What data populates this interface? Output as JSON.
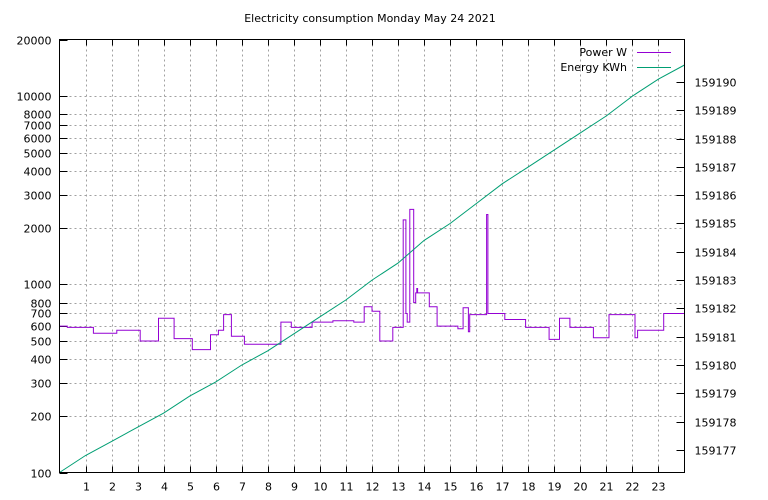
{
  "chart_data": {
    "type": "line",
    "title": "Electricity consumption Monday May 24 2021",
    "xlabel": "",
    "ylabel": "",
    "xlim": [
      0,
      24
    ],
    "x_ticks": [
      1,
      2,
      3,
      4,
      5,
      6,
      7,
      8,
      9,
      10,
      11,
      12,
      13,
      14,
      15,
      16,
      17,
      18,
      19,
      20,
      21,
      22,
      23
    ],
    "ylim_left": [
      100,
      20000
    ],
    "y_scale_left": "log",
    "y_ticks_left": [
      100,
      200,
      300,
      400,
      500,
      600,
      700,
      800,
      1000,
      2000,
      3000,
      4000,
      5000,
      6000,
      7000,
      8000,
      10000,
      20000
    ],
    "ylim_right": [
      159176.2,
      159191.5
    ],
    "y_ticks_right": [
      159177,
      159178,
      159179,
      159180,
      159181,
      159182,
      159183,
      159184,
      159185,
      159186,
      159187,
      159188,
      159189,
      159190
    ],
    "grid": true,
    "legend_position": "top-right",
    "series": [
      {
        "name": "Power W",
        "axis": "left",
        "color": "#9400d3",
        "x": [
          0,
          0.3,
          0.3,
          1.3,
          1.3,
          2.2,
          2.2,
          3.1,
          3.1,
          3.8,
          3.8,
          4.4,
          4.4,
          5.1,
          5.1,
          5.8,
          5.8,
          6.1,
          6.1,
          6.3,
          6.3,
          6.6,
          6.6,
          7.1,
          7.1,
          8.5,
          8.5,
          8.9,
          8.9,
          9.7,
          9.7,
          10.5,
          10.5,
          11.3,
          11.3,
          11.7,
          11.7,
          12.0,
          12.0,
          12.3,
          12.3,
          12.8,
          12.8,
          13.2,
          13.2,
          13.3,
          13.3,
          13.35,
          13.35,
          13.45,
          13.45,
          13.6,
          13.6,
          13.68,
          13.68,
          13.72,
          13.72,
          13.75,
          13.75,
          14.2,
          14.2,
          14.5,
          14.5,
          15.3,
          15.3,
          15.5,
          15.5,
          15.7,
          15.7,
          15.75,
          15.75,
          16.4,
          16.4,
          16.45,
          16.45,
          17.1,
          17.1,
          17.9,
          17.9,
          18.8,
          18.8,
          19.2,
          19.2,
          19.6,
          19.6,
          20.5,
          20.5,
          21.1,
          21.1,
          22.1,
          22.1,
          22.2,
          22.2,
          23.2,
          23.2,
          23.5,
          23.5,
          24
        ],
        "values": [
          600,
          600,
          590,
          590,
          550,
          550,
          570,
          570,
          500,
          500,
          660,
          660,
          515,
          515,
          450,
          450,
          540,
          540,
          570,
          570,
          690,
          690,
          530,
          530,
          480,
          480,
          630,
          630,
          590,
          590,
          630,
          630,
          640,
          640,
          630,
          630,
          760,
          760,
          720,
          720,
          500,
          500,
          590,
          590,
          2200,
          2200,
          700,
          700,
          630,
          630,
          2500,
          2500,
          800,
          800,
          900,
          900,
          950,
          950,
          900,
          900,
          760,
          760,
          600,
          600,
          580,
          580,
          750,
          750,
          560,
          560,
          690,
          690,
          2350,
          2350,
          700,
          700,
          650,
          650,
          590,
          590,
          510,
          510,
          660,
          660,
          590,
          590,
          520,
          520,
          690,
          690,
          520,
          520,
          570,
          570,
          700,
          700,
          700,
          700
        ]
      },
      {
        "name": "Energy KWh",
        "axis": "right",
        "color": "#009e73",
        "x": [
          0,
          1,
          2,
          3,
          4,
          5,
          6,
          7,
          8,
          9,
          10,
          11,
          12,
          13,
          14,
          15,
          16,
          17,
          18,
          19,
          20,
          21,
          22,
          23,
          24
        ],
        "values": [
          159176.2,
          159176.8,
          159177.3,
          159177.8,
          159178.3,
          159178.9,
          159179.4,
          159180.0,
          159180.5,
          159181.1,
          159181.7,
          159182.3,
          159183.0,
          159183.6,
          159184.4,
          159185.0,
          159185.7,
          159186.4,
          159187.0,
          159187.6,
          159188.2,
          159188.8,
          159189.5,
          159190.1,
          159190.6
        ]
      }
    ]
  }
}
